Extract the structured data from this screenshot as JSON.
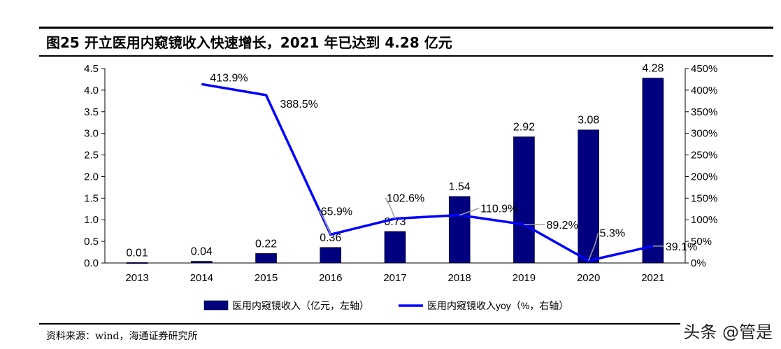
{
  "title": "图25 开立医用内窥镜收入快速增长，2021 年已达到 4.28 亿元",
  "source": "资料来源：wind，海通证券研究所",
  "watermark": "头条 @管是",
  "chart_data": {
    "type": "bar",
    "title": "",
    "categories": [
      "2013",
      "2014",
      "2015",
      "2016",
      "2017",
      "2018",
      "2019",
      "2020",
      "2021"
    ],
    "series": [
      {
        "name": "医用内窥镜收入（亿元，左轴）",
        "type": "bar",
        "axis": "left",
        "color": "#000080",
        "values": [
          0.01,
          0.04,
          0.22,
          0.36,
          0.73,
          1.54,
          2.92,
          3.08,
          4.28
        ],
        "labels": [
          "0.01",
          "0.04",
          "0.22",
          "0.36",
          "0.73",
          "1.54",
          "2.92",
          "3.08",
          "4.28"
        ]
      },
      {
        "name": "医用内窥镜收入yoy（%，右轴）",
        "type": "line",
        "axis": "right",
        "color": "#0000ff",
        "values": [
          null,
          413.9,
          388.5,
          65.9,
          102.6,
          110.9,
          89.2,
          5.3,
          39.1
        ],
        "labels": [
          "",
          "413.9%",
          "388.5%",
          "65.9%",
          "102.6%",
          "110.9%",
          "89.2%",
          "5.3%",
          "39.1%"
        ]
      }
    ],
    "y_left": {
      "range": [
        0,
        4.5
      ],
      "ticks": [
        "0.0",
        "0.5",
        "1.0",
        "1.5",
        "2.0",
        "2.5",
        "3.0",
        "3.5",
        "4.0",
        "4.5"
      ]
    },
    "y_right": {
      "range": [
        0,
        450
      ],
      "ticks": [
        "0%",
        "50%",
        "100%",
        "150%",
        "200%",
        "250%",
        "300%",
        "350%",
        "400%",
        "450%"
      ]
    },
    "grid": false,
    "legend": "bottom"
  }
}
